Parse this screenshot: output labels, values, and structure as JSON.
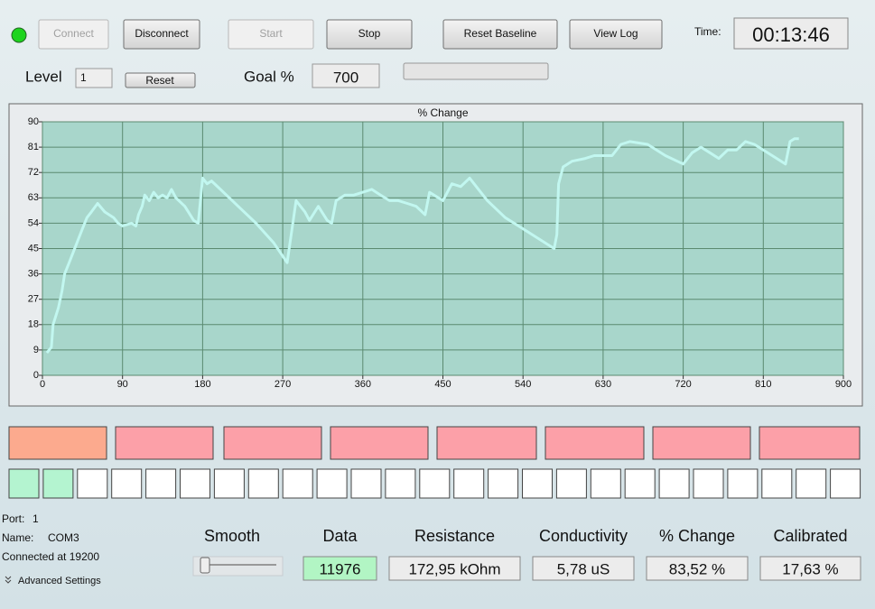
{
  "toolbar": {
    "buttons": [
      "Connect",
      "Disconnect",
      "Start",
      "Stop",
      "Reset Baseline",
      "View Log"
    ],
    "time_label": "Time:",
    "time": "00:13:46"
  },
  "level": {
    "label": "Level",
    "value": "1",
    "reset": "Reset",
    "goal_label": "Goal %",
    "goal": "700"
  },
  "chart_data": {
    "type": "line",
    "title": "% Change",
    "x": [
      5,
      10,
      12,
      18,
      22,
      25,
      30,
      35,
      40,
      45,
      50,
      55,
      62,
      70,
      80,
      85,
      90,
      100,
      105,
      108,
      112,
      115,
      120,
      125,
      130,
      135,
      140,
      145,
      150,
      160,
      170,
      175,
      180,
      185,
      190,
      200,
      220,
      240,
      260,
      275,
      285,
      295,
      300,
      310,
      320,
      325,
      330,
      340,
      350,
      360,
      370,
      380,
      390,
      400,
      410,
      420,
      430,
      435,
      445,
      450,
      460,
      470,
      480,
      490,
      500,
      520,
      540,
      560,
      575,
      578,
      580,
      585,
      595,
      610,
      620,
      640,
      650,
      660,
      680,
      700,
      720,
      730,
      740,
      750,
      760,
      770,
      780,
      790,
      800,
      820,
      835,
      840,
      845,
      850
    ],
    "series": [
      {
        "name": "% Change",
        "color": "#c2f7f0",
        "values": [
          8,
          10,
          18,
          24,
          30,
          36,
          40,
          44,
          48,
          52,
          56,
          58,
          61,
          58,
          56,
          54,
          53,
          54,
          53,
          57,
          60,
          64,
          62,
          65,
          63,
          64,
          63,
          66,
          63,
          60,
          55,
          54,
          70,
          68,
          69,
          66,
          60,
          54,
          47,
          40,
          62,
          58,
          55,
          60,
          55,
          54,
          62,
          64,
          64,
          65,
          66,
          64,
          62,
          62,
          61,
          60,
          57,
          65,
          63,
          62,
          68,
          67,
          70,
          66,
          62,
          56,
          52,
          48,
          45,
          50,
          68,
          74,
          76,
          77,
          78,
          78,
          82,
          83,
          82,
          78,
          75,
          79,
          81,
          79,
          77,
          80,
          80,
          83,
          82,
          78,
          75,
          83,
          84,
          84
        ]
      }
    ],
    "xlim": [
      0,
      900
    ],
    "xticks": [
      0,
      90,
      180,
      270,
      360,
      450,
      540,
      630,
      720,
      810,
      900
    ],
    "ylim": [
      0,
      90
    ],
    "yticks": [
      0,
      9,
      18,
      27,
      36,
      45,
      54,
      63,
      72,
      81,
      90
    ],
    "grid": true
  },
  "status": {
    "port": "Port:",
    "port_value": "1",
    "name": "Name:",
    "name_value": "COM3",
    "connected": "Connected at 19200",
    "advanced": "Advanced Settings"
  },
  "smooth": "Smooth",
  "readouts": [
    {
      "label": "Data",
      "value": "11976"
    },
    {
      "label": "Resistance",
      "value": "172,95 kOhm"
    },
    {
      "label": "Conductivity",
      "value": "5,78 uS"
    },
    {
      "label": "% Change",
      "value": "83,52 %"
    },
    {
      "label": "Calibrated",
      "value": "17,63 %"
    }
  ]
}
